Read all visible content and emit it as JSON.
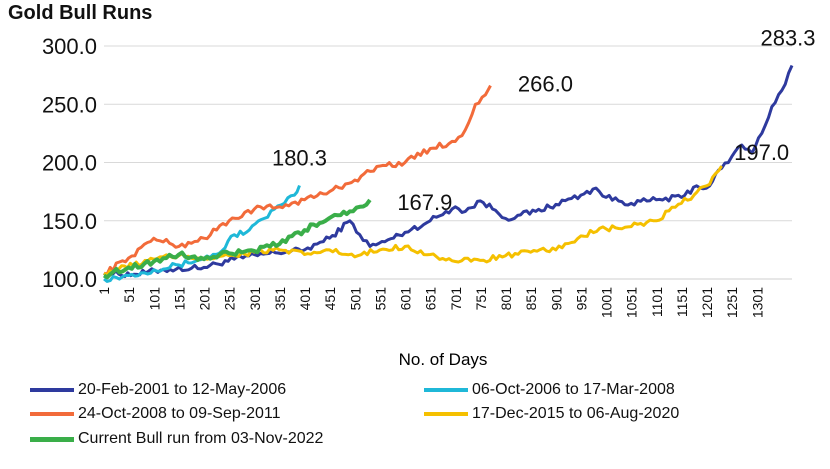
{
  "chart_data": {
    "type": "line",
    "title": "Gold Bull Runs",
    "xlabel": "No. of Days",
    "ylabel": "",
    "ylim": [
      100,
      300
    ],
    "xlim": [
      1,
      1370
    ],
    "yticks": [
      "100.0",
      "150.0",
      "200.0",
      "250.0",
      "300.0"
    ],
    "xticks": [
      "1",
      "51",
      "101",
      "151",
      "201",
      "251",
      "301",
      "351",
      "401",
      "451",
      "501",
      "551",
      "601",
      "651",
      "701",
      "751",
      "801",
      "851",
      "901",
      "951",
      "1001",
      "1051",
      "1101",
      "1151",
      "1201",
      "1251",
      "1301"
    ],
    "grid": "horizontal",
    "legend_position": "bottom",
    "series": [
      {
        "name": "20-Feb-2001 to 12-May-2006",
        "color": "#2E3A9E",
        "end_label": "283.3",
        "x": [
          1,
          60,
          120,
          200,
          260,
          330,
          400,
          450,
          490,
          510,
          530,
          560,
          600,
          650,
          700,
          720,
          750,
          780,
          800,
          830,
          860,
          900,
          950,
          980,
          1000,
          1050,
          1100,
          1150,
          1180,
          1200,
          1230,
          1250,
          1270,
          1290,
          1310,
          1330,
          1350,
          1370
        ],
        "y": [
          105,
          104,
          108,
          110,
          117,
          122,
          125,
          135,
          150,
          138,
          128,
          132,
          140,
          150,
          162,
          158,
          167,
          159,
          152,
          155,
          158,
          164,
          172,
          178,
          170,
          165,
          168,
          170,
          180,
          178,
          195,
          205,
          215,
          208,
          225,
          248,
          262,
          283.3
        ]
      },
      {
        "name": "06-Oct-2006 to 17-Mar-2008",
        "color": "#1FB8D8",
        "end_label": "180.3",
        "x": [
          1,
          50,
          100,
          150,
          200,
          230,
          260,
          290,
          320,
          340,
          360,
          380,
          390
        ],
        "y": [
          100,
          103,
          108,
          112,
          118,
          122,
          138,
          142,
          152,
          160,
          165,
          172,
          180.3
        ]
      },
      {
        "name": "24-Oct-2008 to 09-Sep-2011",
        "color": "#F26B3A",
        "end_label": "266.0",
        "x": [
          1,
          50,
          100,
          150,
          200,
          250,
          300,
          350,
          400,
          450,
          500,
          550,
          600,
          650,
          700,
          720,
          740,
          760,
          770
        ],
        "y": [
          105,
          118,
          135,
          128,
          135,
          150,
          160,
          162,
          168,
          175,
          185,
          197,
          200,
          212,
          218,
          228,
          250,
          258,
          266
        ]
      },
      {
        "name": "17-Dec-2015 to 06-Aug-2020",
        "color": "#F5C000",
        "end_label": "197.0",
        "x": [
          1,
          100,
          150,
          200,
          250,
          300,
          350,
          400,
          450,
          500,
          550,
          600,
          650,
          700,
          750,
          800,
          850,
          900,
          950,
          1000,
          1050,
          1100,
          1150,
          1200,
          1230
        ],
        "y": [
          105,
          117,
          120,
          118,
          120,
          123,
          125,
          121,
          125,
          119,
          125,
          128,
          121,
          115,
          116,
          120,
          123,
          125,
          137,
          143,
          145,
          150,
          165,
          180,
          197
        ]
      },
      {
        "name": "Current Bull run from 03-Nov-2022",
        "color": "#3AAE49",
        "end_label": "167.9",
        "x": [
          1,
          50,
          100,
          150,
          200,
          250,
          300,
          350,
          400,
          430,
          460,
          490,
          510,
          530
        ],
        "y": [
          103,
          110,
          115,
          121,
          117,
          122,
          124,
          130,
          142,
          148,
          155,
          158,
          162,
          167.9
        ]
      }
    ]
  }
}
